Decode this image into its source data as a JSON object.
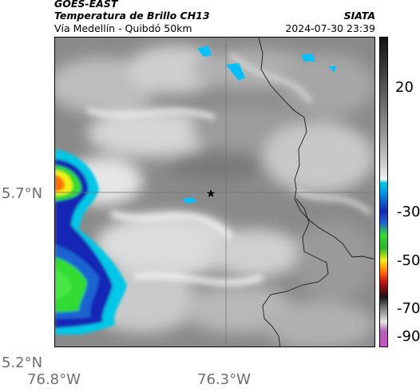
{
  "header": {
    "satellite": "GOES-EAST",
    "product": "Temperatura de Brillo CH13",
    "region": "Vía Medellín - Quibdó 50km",
    "org": "SIATA",
    "timestamp": "2024-07-30 23:39"
  },
  "axes": {
    "lat_ticks": [
      "5.7°N",
      "5.2°N"
    ],
    "lon_ticks": [
      "76.8°W",
      "76.3°W"
    ]
  },
  "colorbar": {
    "ticks": [
      "20",
      "-30",
      "-50",
      "-70",
      "-90"
    ],
    "colors": {
      "warm_gray": "#8a8a8a",
      "light": "#f2f2f2",
      "cyan": "#00c8e6",
      "blue": "#1428b4",
      "green": "#32dc32",
      "yellow": "#f0f014",
      "orange": "#ff6e00",
      "red": "#c81414",
      "black": "#141414",
      "magenta": "#c850c8"
    }
  },
  "map": {
    "marker": "star-marker",
    "colors": {
      "cloud_top": "#00c0ff",
      "border": "#1a1a1a",
      "gridline": "#6e6e6e"
    }
  }
}
